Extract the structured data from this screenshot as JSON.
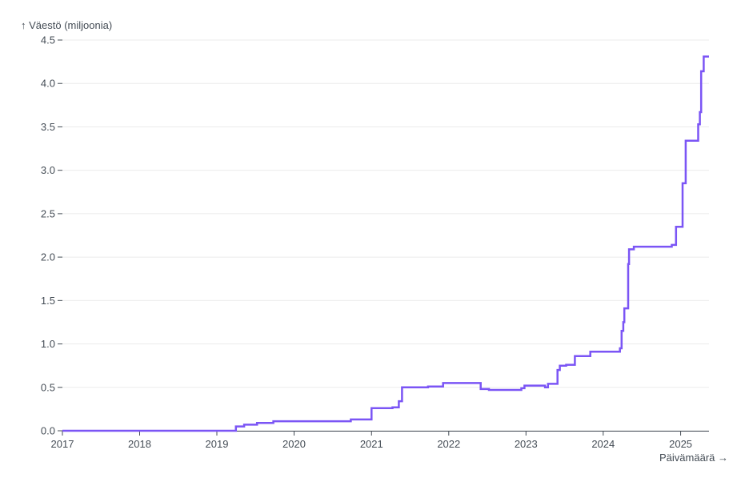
{
  "chart_data": {
    "type": "line",
    "title": "",
    "ylabel": "↑ Väestö (miljoonia)",
    "xlabel": "Päivämäärä →",
    "ylim": [
      0,
      4.5
    ],
    "xlim": [
      "2017-01-01",
      "2025-05-15"
    ],
    "yticks": [
      "0.0",
      "0.5",
      "1.0",
      "1.5",
      "2.0",
      "2.5",
      "3.0",
      "3.5",
      "4.0",
      "4.5"
    ],
    "ytick_values": [
      0,
      0.5,
      1.0,
      1.5,
      2.0,
      2.5,
      3.0,
      3.5,
      4.0,
      4.5
    ],
    "xticks": [
      "2017",
      "2018",
      "2019",
      "2020",
      "2021",
      "2022",
      "2023",
      "2024",
      "2025"
    ],
    "xtick_values": [
      "2017-01-01",
      "2018-01-01",
      "2019-01-01",
      "2020-01-01",
      "2021-01-01",
      "2022-01-01",
      "2023-01-01",
      "2024-01-01",
      "2025-01-01"
    ],
    "grid": true,
    "line_color": "#7b55f5",
    "series": [
      {
        "step": "after",
        "points": [
          [
            "2017-01-01",
            0.0
          ],
          [
            "2019-04-01",
            0.05
          ],
          [
            "2019-05-10",
            0.07
          ],
          [
            "2019-07-10",
            0.09
          ],
          [
            "2019-09-25",
            0.11
          ],
          [
            "2020-09-25",
            0.13
          ],
          [
            "2021-01-01",
            0.26
          ],
          [
            "2021-04-10",
            0.27
          ],
          [
            "2021-05-10",
            0.34
          ],
          [
            "2021-05-25",
            0.5
          ],
          [
            "2021-09-25",
            0.51
          ],
          [
            "2021-12-05",
            0.55
          ],
          [
            "2022-06-01",
            0.48
          ],
          [
            "2022-07-10",
            0.47
          ],
          [
            "2022-12-10",
            0.49
          ],
          [
            "2022-12-25",
            0.52
          ],
          [
            "2023-04-01",
            0.5
          ],
          [
            "2023-04-15",
            0.54
          ],
          [
            "2023-05-30",
            0.7
          ],
          [
            "2023-06-10",
            0.75
          ],
          [
            "2023-07-10",
            0.76
          ],
          [
            "2023-08-20",
            0.86
          ],
          [
            "2023-11-01",
            0.91
          ],
          [
            "2024-03-20",
            0.95
          ],
          [
            "2024-03-28",
            1.15
          ],
          [
            "2024-04-05",
            1.25
          ],
          [
            "2024-04-10",
            1.41
          ],
          [
            "2024-04-28",
            1.92
          ],
          [
            "2024-05-02",
            2.09
          ],
          [
            "2024-05-25",
            2.12
          ],
          [
            "2024-11-20",
            2.14
          ],
          [
            "2024-12-10",
            2.35
          ],
          [
            "2025-01-10",
            2.85
          ],
          [
            "2025-01-25",
            3.34
          ],
          [
            "2025-03-25",
            3.53
          ],
          [
            "2025-04-02",
            3.67
          ],
          [
            "2025-04-08",
            4.14
          ],
          [
            "2025-04-20",
            4.31
          ],
          [
            "2025-05-15",
            4.31
          ]
        ]
      }
    ]
  }
}
